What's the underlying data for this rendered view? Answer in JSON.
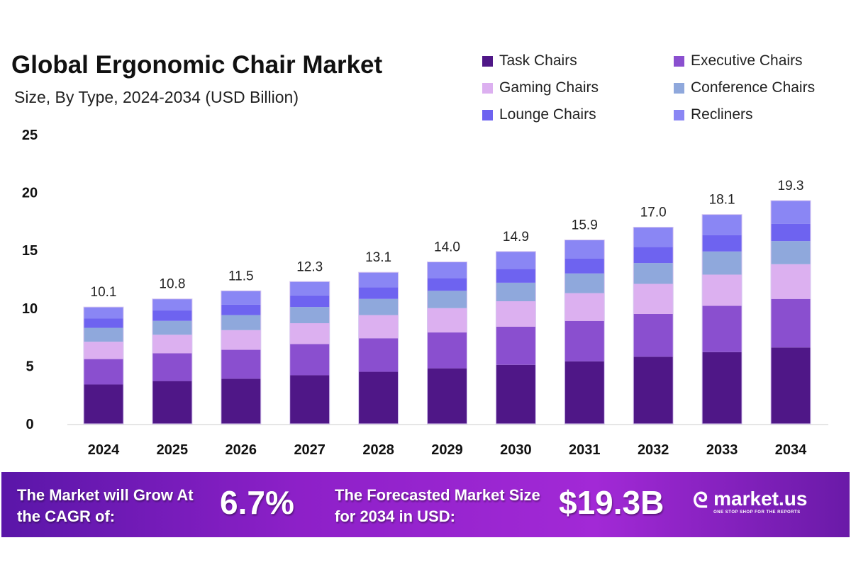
{
  "chart_data": {
    "type": "bar",
    "stacked": true,
    "title": "Global Ergonomic Chair Market",
    "subtitle": "Size, By Type, 2024-2034 (USD Billion)",
    "xlabel": "",
    "ylabel": "",
    "ylim": [
      0,
      25
    ],
    "yticks": [
      "0",
      "5",
      "10",
      "15",
      "20",
      "25"
    ],
    "categories": [
      "2024",
      "2025",
      "2026",
      "2027",
      "2028",
      "2029",
      "2030",
      "2031",
      "2032",
      "2033",
      "2034"
    ],
    "totals": [
      "10.1",
      "10.8",
      "11.5",
      "12.3",
      "13.1",
      "14.0",
      "14.9",
      "15.9",
      "17.0",
      "18.1",
      "19.3"
    ],
    "series": [
      {
        "name": "Task Chairs",
        "color": "#4f1787",
        "values": [
          3.4,
          3.7,
          3.9,
          4.2,
          4.5,
          4.8,
          5.1,
          5.4,
          5.8,
          6.2,
          6.6
        ]
      },
      {
        "name": "Executive Chairs",
        "color": "#8a4fcf",
        "values": [
          2.2,
          2.4,
          2.5,
          2.7,
          2.9,
          3.1,
          3.3,
          3.5,
          3.7,
          4.0,
          4.2
        ]
      },
      {
        "name": "Gaming Chairs",
        "color": "#dcb0f0",
        "values": [
          1.5,
          1.6,
          1.7,
          1.8,
          2.0,
          2.1,
          2.2,
          2.4,
          2.6,
          2.7,
          3.0
        ]
      },
      {
        "name": "Conference Chairs",
        "color": "#8fa8dc",
        "values": [
          1.2,
          1.2,
          1.3,
          1.4,
          1.4,
          1.5,
          1.6,
          1.7,
          1.8,
          2.0,
          2.0
        ]
      },
      {
        "name": "Lounge Chairs",
        "color": "#6e63f0",
        "values": [
          0.8,
          0.9,
          0.9,
          1.0,
          1.0,
          1.1,
          1.2,
          1.3,
          1.4,
          1.4,
          1.5
        ]
      },
      {
        "name": "Recliners",
        "color": "#8a86f4",
        "values": [
          1.0,
          1.0,
          1.2,
          1.2,
          1.3,
          1.4,
          1.5,
          1.6,
          1.7,
          1.8,
          2.0
        ]
      }
    ],
    "legend_position": "top-right",
    "grid": false
  },
  "banner": {
    "cagr_label": "The Market will Grow At the CAGR of:",
    "cagr_value": "6.7%",
    "forecast_label": "The Forecasted Market Size for 2034 in USD:",
    "forecast_value": "$19.3B",
    "brand": "market.us",
    "tagline": "ONE STOP SHOP FOR THE REPORTS"
  }
}
